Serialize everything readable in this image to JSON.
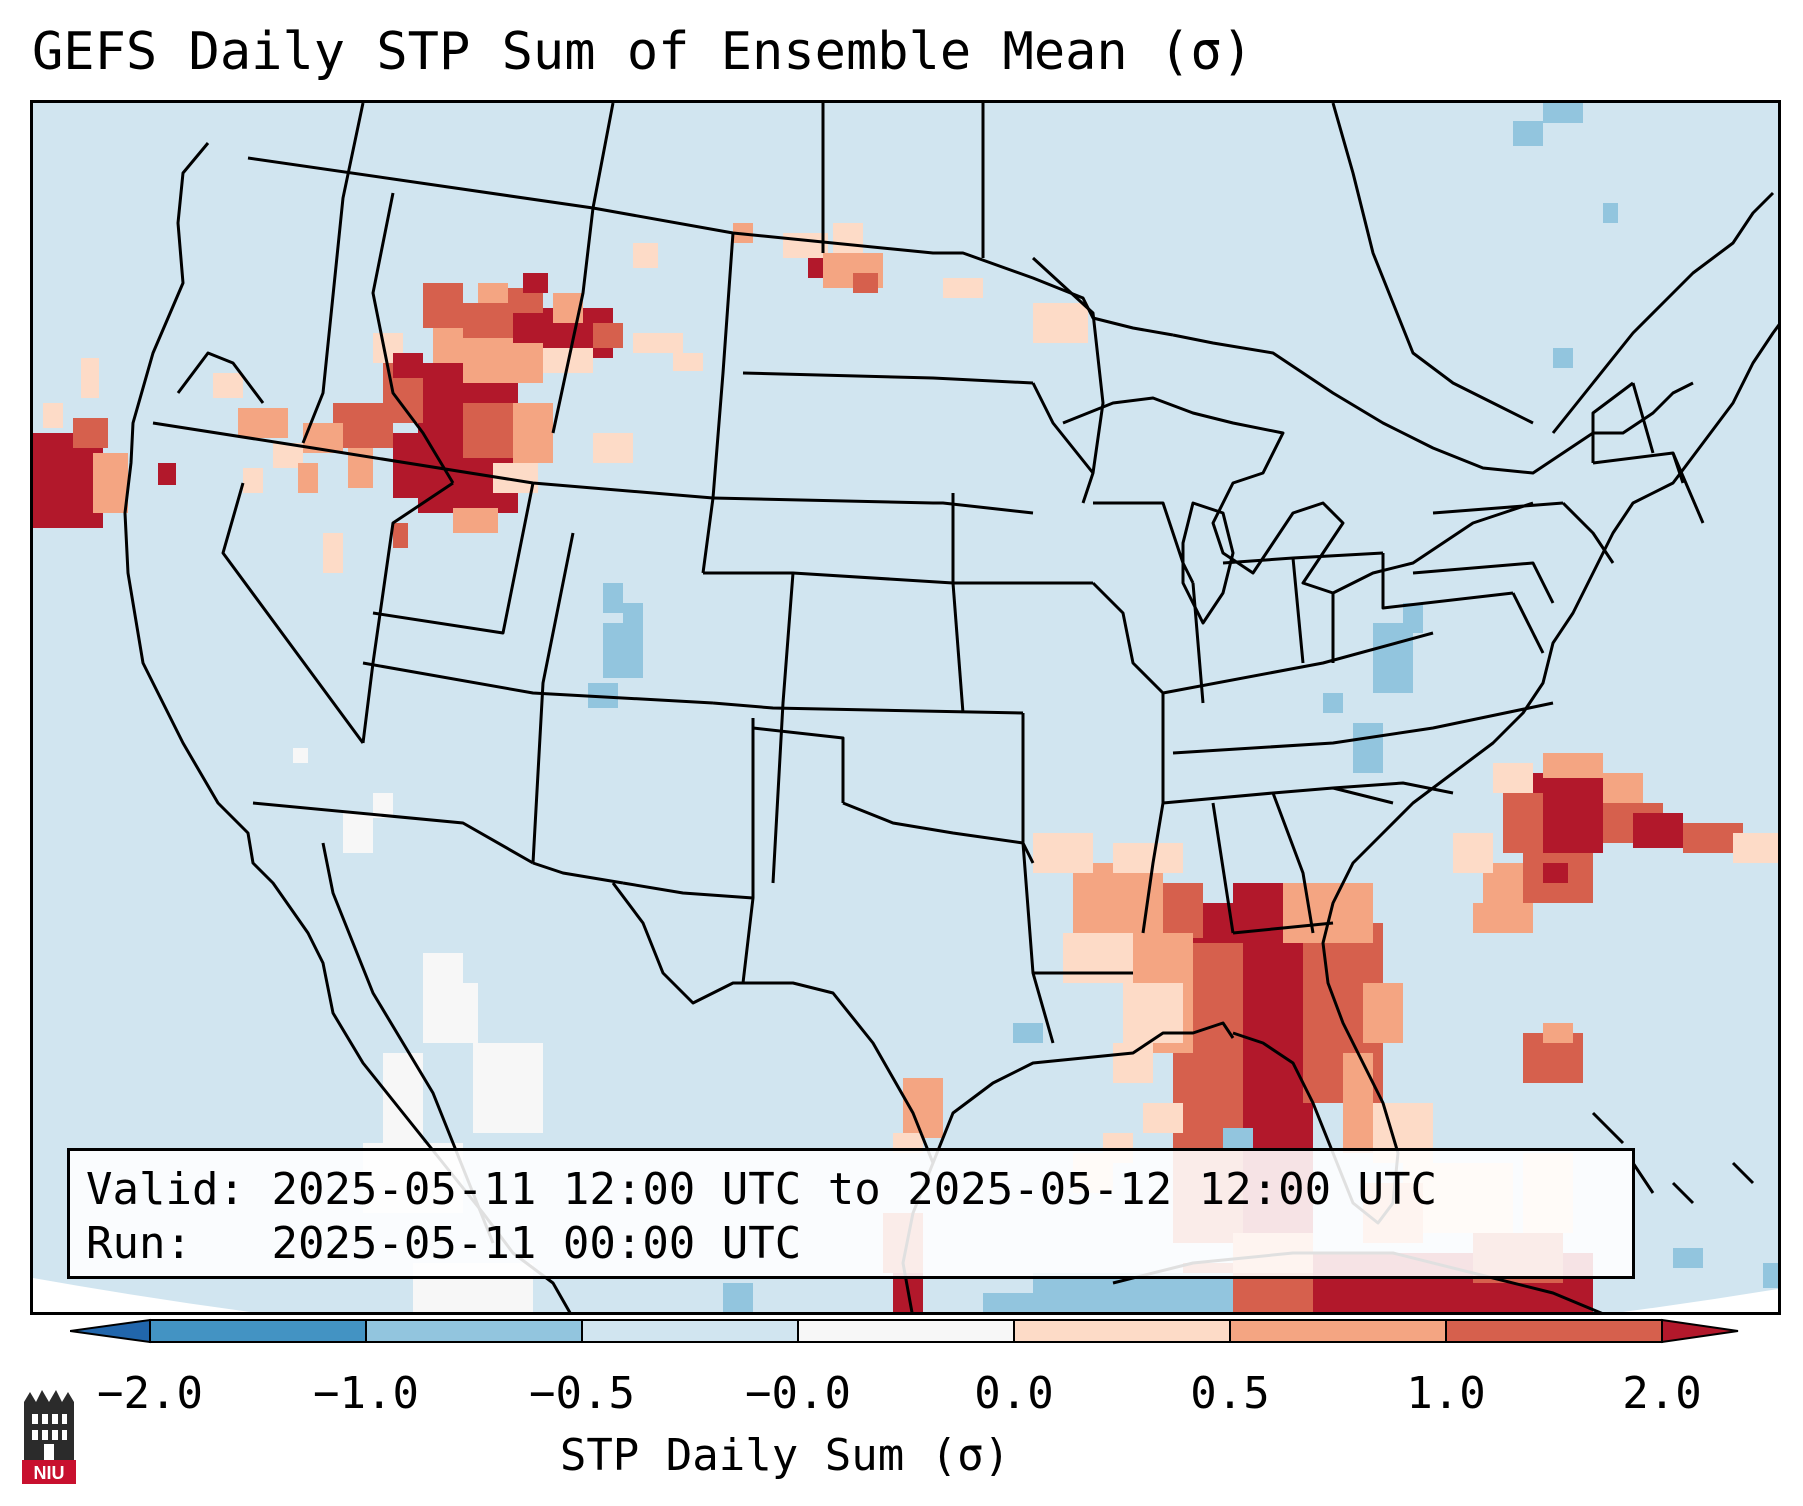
{
  "title": "GEFS Daily STP Sum of Ensemble Mean (σ)",
  "info": {
    "valid_label": "Valid:",
    "valid_value": "2025-05-11 12:00 UTC to 2025-05-12 12:00 UTC",
    "run_label": "Run:",
    "run_value": "2025-05-11 00:00 UTC"
  },
  "colorbar": {
    "label": "STP Daily Sum (σ)",
    "ticks": [
      "−2.0",
      "−1.0",
      "−0.5",
      "−0.0",
      "0.0",
      "0.5",
      "1.0",
      "2.0"
    ],
    "colors": {
      "extend_low": "#2166ac",
      "bin_-2_-1": "#4393c3",
      "bin_-1_-0.5": "#92c5de",
      "bin_-0.5_0": "#d1e5f0",
      "bin_0_0": "#f7f7f7",
      "bin_0_0.5": "#fddbc7",
      "bin_0.5_1": "#f4a582",
      "bin_1_2": "#d6604d",
      "extend_high": "#b2182b"
    }
  },
  "map": {
    "region": "Contiguous United States",
    "background_color": "#d1e5f0",
    "border_color": "#000000"
  },
  "logo": {
    "text": "NIU",
    "color": "#c8102e"
  }
}
